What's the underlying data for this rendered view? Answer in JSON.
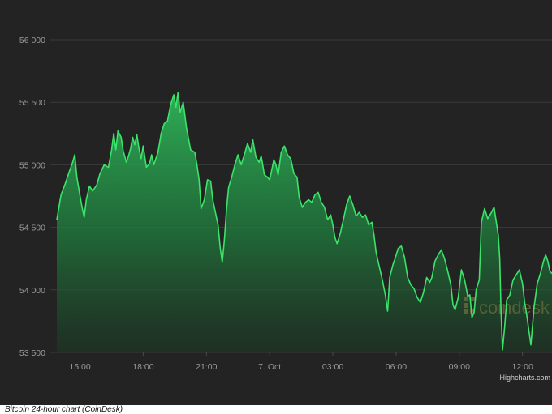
{
  "chart_data": {
    "type": "area",
    "title": "",
    "xlabel": "",
    "ylabel": "",
    "ylim": [
      53500,
      56000
    ],
    "y_ticks": [
      "56 000",
      "55 500",
      "55 000",
      "54 500",
      "54 000",
      "53 500"
    ],
    "y_tick_values": [
      56000,
      55500,
      55000,
      54500,
      54000,
      53500
    ],
    "x_ticks": [
      "15:00",
      "18:00",
      "21:00",
      "7. Oct",
      "03:00",
      "06:00",
      "09:00",
      "12:00"
    ],
    "x_tick_hours": [
      15,
      18,
      21,
      24,
      27,
      30,
      33,
      36
    ],
    "x_range_hours": [
      13.9,
      37.4
    ],
    "grid": "horizontal",
    "legend": "none",
    "line_color": "#3be36b",
    "fill_top_color": "#2fb659",
    "series": [
      {
        "points": [
          [
            13.9,
            54560
          ],
          [
            14.1,
            54760
          ],
          [
            14.3,
            54850
          ],
          [
            14.5,
            54950
          ],
          [
            14.65,
            55020
          ],
          [
            14.75,
            55080
          ],
          [
            14.85,
            54900
          ],
          [
            15.0,
            54750
          ],
          [
            15.1,
            54660
          ],
          [
            15.2,
            54580
          ],
          [
            15.3,
            54720
          ],
          [
            15.45,
            54830
          ],
          [
            15.6,
            54790
          ],
          [
            15.8,
            54840
          ],
          [
            15.95,
            54930
          ],
          [
            16.15,
            55000
          ],
          [
            16.35,
            54980
          ],
          [
            16.5,
            55120
          ],
          [
            16.6,
            55250
          ],
          [
            16.7,
            55120
          ],
          [
            16.8,
            55270
          ],
          [
            16.95,
            55220
          ],
          [
            17.05,
            55110
          ],
          [
            17.2,
            55020
          ],
          [
            17.3,
            55070
          ],
          [
            17.4,
            55130
          ],
          [
            17.5,
            55220
          ],
          [
            17.6,
            55160
          ],
          [
            17.7,
            55240
          ],
          [
            17.8,
            55130
          ],
          [
            17.9,
            55050
          ],
          [
            18.0,
            55150
          ],
          [
            18.15,
            54980
          ],
          [
            18.3,
            55010
          ],
          [
            18.4,
            55080
          ],
          [
            18.5,
            55000
          ],
          [
            18.7,
            55100
          ],
          [
            18.85,
            55250
          ],
          [
            19.0,
            55330
          ],
          [
            19.15,
            55350
          ],
          [
            19.3,
            55480
          ],
          [
            19.45,
            55560
          ],
          [
            19.55,
            55460
          ],
          [
            19.65,
            55580
          ],
          [
            19.75,
            55420
          ],
          [
            19.9,
            55500
          ],
          [
            20.05,
            55300
          ],
          [
            20.25,
            55120
          ],
          [
            20.45,
            55100
          ],
          [
            20.55,
            55000
          ],
          [
            20.65,
            54880
          ],
          [
            20.75,
            54650
          ],
          [
            20.9,
            54720
          ],
          [
            21.05,
            54880
          ],
          [
            21.2,
            54870
          ],
          [
            21.3,
            54720
          ],
          [
            21.45,
            54600
          ],
          [
            21.55,
            54520
          ],
          [
            21.65,
            54340
          ],
          [
            21.75,
            54220
          ],
          [
            21.85,
            54400
          ],
          [
            21.95,
            54640
          ],
          [
            22.05,
            54820
          ],
          [
            22.2,
            54900
          ],
          [
            22.35,
            55000
          ],
          [
            22.5,
            55080
          ],
          [
            22.65,
            55000
          ],
          [
            22.8,
            55080
          ],
          [
            22.95,
            55170
          ],
          [
            23.1,
            55100
          ],
          [
            23.2,
            55200
          ],
          [
            23.35,
            55060
          ],
          [
            23.5,
            55020
          ],
          [
            23.6,
            55070
          ],
          [
            23.75,
            54920
          ],
          [
            23.9,
            54900
          ],
          [
            24.0,
            54880
          ],
          [
            24.1,
            54960
          ],
          [
            24.2,
            55040
          ],
          [
            24.3,
            55000
          ],
          [
            24.4,
            54920
          ],
          [
            24.55,
            55100
          ],
          [
            24.7,
            55150
          ],
          [
            24.85,
            55080
          ],
          [
            25.0,
            55050
          ],
          [
            25.15,
            54930
          ],
          [
            25.3,
            54900
          ],
          [
            25.4,
            54740
          ],
          [
            25.55,
            54660
          ],
          [
            25.7,
            54700
          ],
          [
            25.85,
            54720
          ],
          [
            26.0,
            54700
          ],
          [
            26.15,
            54760
          ],
          [
            26.3,
            54780
          ],
          [
            26.45,
            54700
          ],
          [
            26.6,
            54660
          ],
          [
            26.75,
            54560
          ],
          [
            26.9,
            54600
          ],
          [
            27.0,
            54520
          ],
          [
            27.1,
            54420
          ],
          [
            27.2,
            54370
          ],
          [
            27.35,
            54450
          ],
          [
            27.5,
            54560
          ],
          [
            27.65,
            54680
          ],
          [
            27.8,
            54750
          ],
          [
            27.95,
            54680
          ],
          [
            28.1,
            54590
          ],
          [
            28.25,
            54620
          ],
          [
            28.4,
            54580
          ],
          [
            28.55,
            54600
          ],
          [
            28.7,
            54520
          ],
          [
            28.85,
            54540
          ],
          [
            28.95,
            54440
          ],
          [
            29.05,
            54300
          ],
          [
            29.2,
            54190
          ],
          [
            29.35,
            54080
          ],
          [
            29.5,
            53950
          ],
          [
            29.6,
            53830
          ],
          [
            29.7,
            54100
          ],
          [
            29.85,
            54200
          ],
          [
            29.95,
            54250
          ],
          [
            30.1,
            54330
          ],
          [
            30.25,
            54350
          ],
          [
            30.4,
            54260
          ],
          [
            30.55,
            54100
          ],
          [
            30.7,
            54040
          ],
          [
            30.85,
            54010
          ],
          [
            31.0,
            53940
          ],
          [
            31.15,
            53900
          ],
          [
            31.3,
            53980
          ],
          [
            31.45,
            54100
          ],
          [
            31.6,
            54060
          ],
          [
            31.7,
            54100
          ],
          [
            31.85,
            54230
          ],
          [
            32.0,
            54280
          ],
          [
            32.15,
            54320
          ],
          [
            32.3,
            54250
          ],
          [
            32.45,
            54150
          ],
          [
            32.6,
            54040
          ],
          [
            32.7,
            53880
          ],
          [
            32.8,
            53840
          ],
          [
            32.95,
            53940
          ],
          [
            33.1,
            54160
          ],
          [
            33.25,
            54080
          ],
          [
            33.4,
            53950
          ],
          [
            33.5,
            53960
          ],
          [
            33.6,
            53780
          ],
          [
            33.7,
            53820
          ],
          [
            33.8,
            54000
          ],
          [
            33.95,
            54080
          ],
          [
            34.05,
            54540
          ],
          [
            34.2,
            54650
          ],
          [
            34.35,
            54570
          ],
          [
            34.5,
            54610
          ],
          [
            34.65,
            54660
          ],
          [
            34.75,
            54550
          ],
          [
            34.85,
            54440
          ],
          [
            34.92,
            54250
          ],
          [
            34.98,
            53830
          ],
          [
            35.05,
            53520
          ],
          [
            35.15,
            53700
          ],
          [
            35.25,
            53920
          ],
          [
            35.4,
            53960
          ],
          [
            35.55,
            54080
          ],
          [
            35.7,
            54120
          ],
          [
            35.85,
            54160
          ],
          [
            36.0,
            54050
          ],
          [
            36.1,
            53900
          ],
          [
            36.2,
            53800
          ],
          [
            36.3,
            53680
          ],
          [
            36.4,
            53560
          ],
          [
            36.55,
            53860
          ],
          [
            36.7,
            54050
          ],
          [
            36.85,
            54130
          ],
          [
            37.0,
            54230
          ],
          [
            37.1,
            54280
          ],
          [
            37.2,
            54230
          ],
          [
            37.3,
            54150
          ],
          [
            37.4,
            54130
          ]
        ]
      }
    ]
  },
  "watermark": {
    "text": "coindesk",
    "color": "#6b6b3a"
  },
  "credits": "Highcharts.com",
  "caption": "Bitcoin 24-hour chart (CoinDesk)",
  "colors": {
    "background": "#232323",
    "grid": "#3b3b3b",
    "line": "#3be36b",
    "tick_text": "#9a9a9a"
  }
}
